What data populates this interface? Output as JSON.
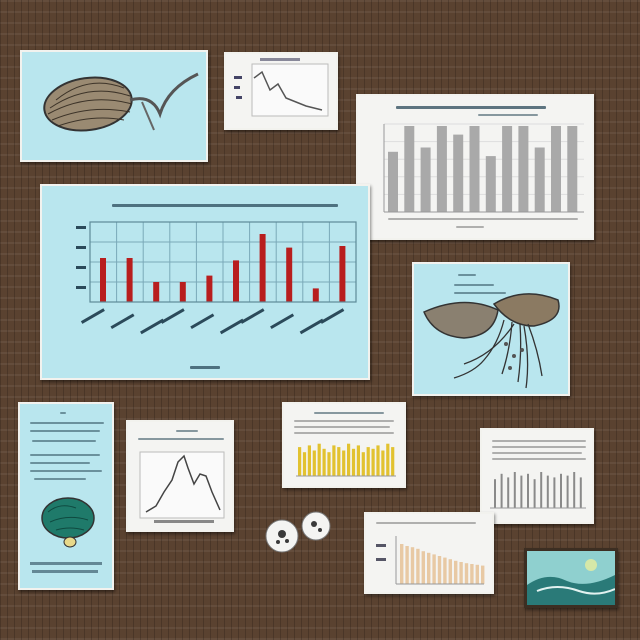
{
  "colors": {
    "board": "#5a4230",
    "cyan_card": "#b9e6ee",
    "white_card": "#f4f4f2",
    "red_bar": "#b81e1e",
    "grey_bar": "#a9a9a9",
    "yellow_bar": "#e2c230",
    "orange_bar": "#e8c9a4"
  },
  "cards": {
    "specimen_top_left": {
      "icon": "seed-pod-illustration"
    },
    "line_chart_top_small": {
      "icon": "line-chart-thumbnail"
    },
    "grey_bar_chart": {
      "chart_data": {
        "type": "bar",
        "values": [
          0.7,
          1.0,
          0.75,
          1.0,
          0.9,
          1.0,
          0.65,
          1.0,
          1.0,
          0.75,
          1.0,
          1.0
        ]
      }
    },
    "red_bar_chart": {
      "chart_data": {
        "type": "bar",
        "values": [
          0.55,
          0.55,
          0.25,
          0.25,
          0.33,
          0.52,
          0.85,
          0.68,
          0.17,
          0.7
        ]
      }
    },
    "jellyfish_card": {
      "icon": "jellyfish-illustration"
    },
    "brain_card": {
      "icon": "brain-illustration"
    },
    "peak_line_chart": {
      "icon": "peak-line-chart"
    },
    "yellow_bar_chart": {
      "chart_data": {
        "type": "bar",
        "values": [
          0.85,
          0.7,
          0.9,
          0.75,
          0.95,
          0.8,
          0.7,
          0.9,
          0.85,
          0.75,
          0.95,
          0.8,
          0.9,
          0.7,
          0.85,
          0.8,
          0.9,
          0.75,
          0.95,
          0.85
        ]
      }
    },
    "grey_line_bars": {
      "chart_data": {
        "type": "bar",
        "values": [
          0.8,
          0.95,
          0.85,
          1.0,
          0.9,
          0.95,
          0.8,
          1.0,
          0.9,
          0.85,
          0.95,
          0.9,
          1.0,
          0.85
        ]
      }
    },
    "orange_decay_chart": {
      "chart_data": {
        "type": "bar",
        "values": [
          1.0,
          0.95,
          0.92,
          0.88,
          0.82,
          0.78,
          0.74,
          0.7,
          0.66,
          0.62,
          0.58,
          0.55,
          0.52,
          0.5,
          0.48,
          0.46
        ]
      }
    },
    "photo_thumbnail": {
      "icon": "landscape-photo"
    },
    "pins": {
      "icon": "pushpin-icon"
    }
  }
}
